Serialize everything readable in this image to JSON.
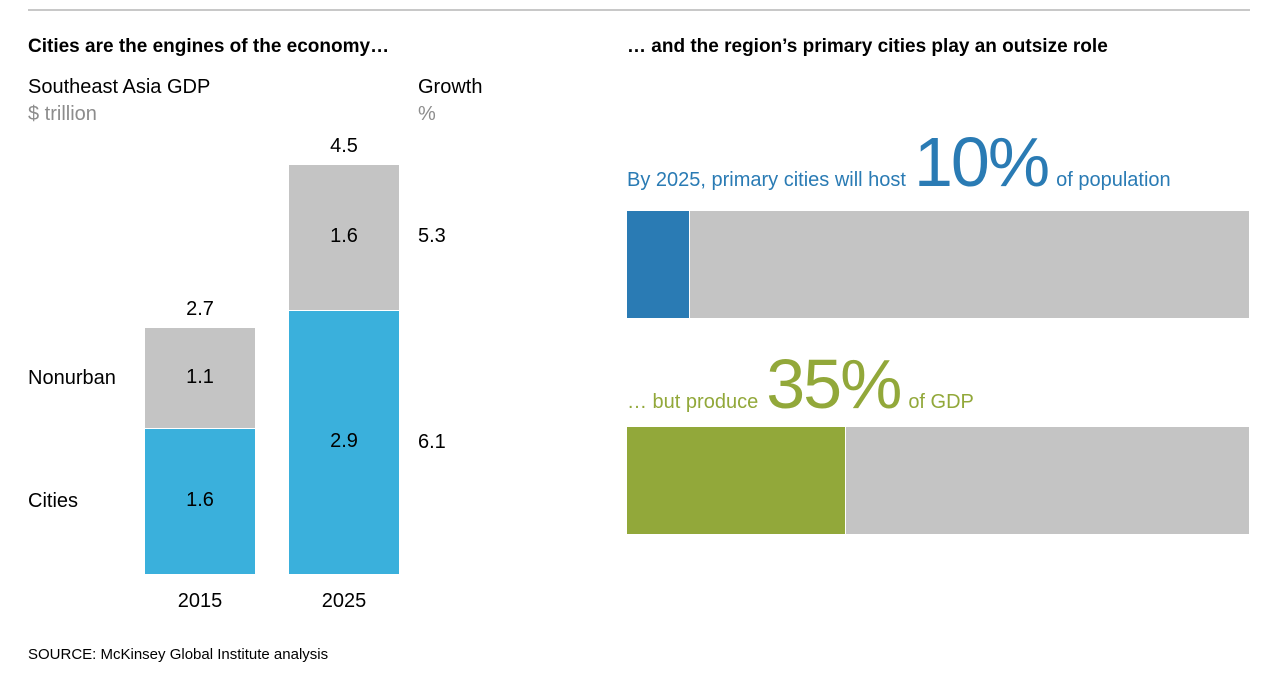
{
  "left": {
    "title": "Cities are the engines of the economy…",
    "subtitle": "Southeast Asia GDP",
    "unit": "$ trillion",
    "growth_label": "Growth",
    "growth_unit": "%",
    "legend_nonurban": "Nonurban",
    "legend_cities": "Cities"
  },
  "right": {
    "title": "… and the region’s primary cities play an outsize role",
    "pop_prefix": "By 2025, primary cities will host",
    "pop_value": "10%",
    "pop_suffix": "of population",
    "gdp_prefix": "… but produce",
    "gdp_value": "35%",
    "gdp_suffix": "of GDP"
  },
  "source": "SOURCE:  McKinsey Global Institute analysis",
  "colors": {
    "cities": "#3ab0dc",
    "nonurban": "#c4c4c4",
    "population": "#2a7bb4",
    "gdp": "#92a83a",
    "rule": "#c8c8c8",
    "muted": "#8c8c8c"
  },
  "chart_data": [
    {
      "type": "bar",
      "stacked": true,
      "title": "Cities are the engines of the economy…",
      "ylabel": "Southeast Asia GDP, $ trillion",
      "categories": [
        "2015",
        "2025"
      ],
      "series": [
        {
          "name": "Cities",
          "values": [
            1.6,
            2.9
          ]
        },
        {
          "name": "Nonurban",
          "values": [
            1.1,
            1.6
          ]
        }
      ],
      "totals": [
        "2.7",
        "4.5"
      ],
      "labels": {
        "Cities": [
          "1.6",
          "2.9"
        ],
        "Nonurban": [
          "1.1",
          "1.6"
        ]
      },
      "growth": {
        "label": "Growth",
        "unit": "%",
        "Nonurban": "5.3",
        "Cities": "6.1"
      },
      "ylim": [
        0,
        4.5
      ]
    },
    {
      "type": "bar",
      "orientation": "horizontal",
      "title": "… and the region’s primary cities play an outsize role",
      "categories": [
        "population",
        "GDP"
      ],
      "values": [
        10,
        35
      ],
      "max": 100
    }
  ]
}
